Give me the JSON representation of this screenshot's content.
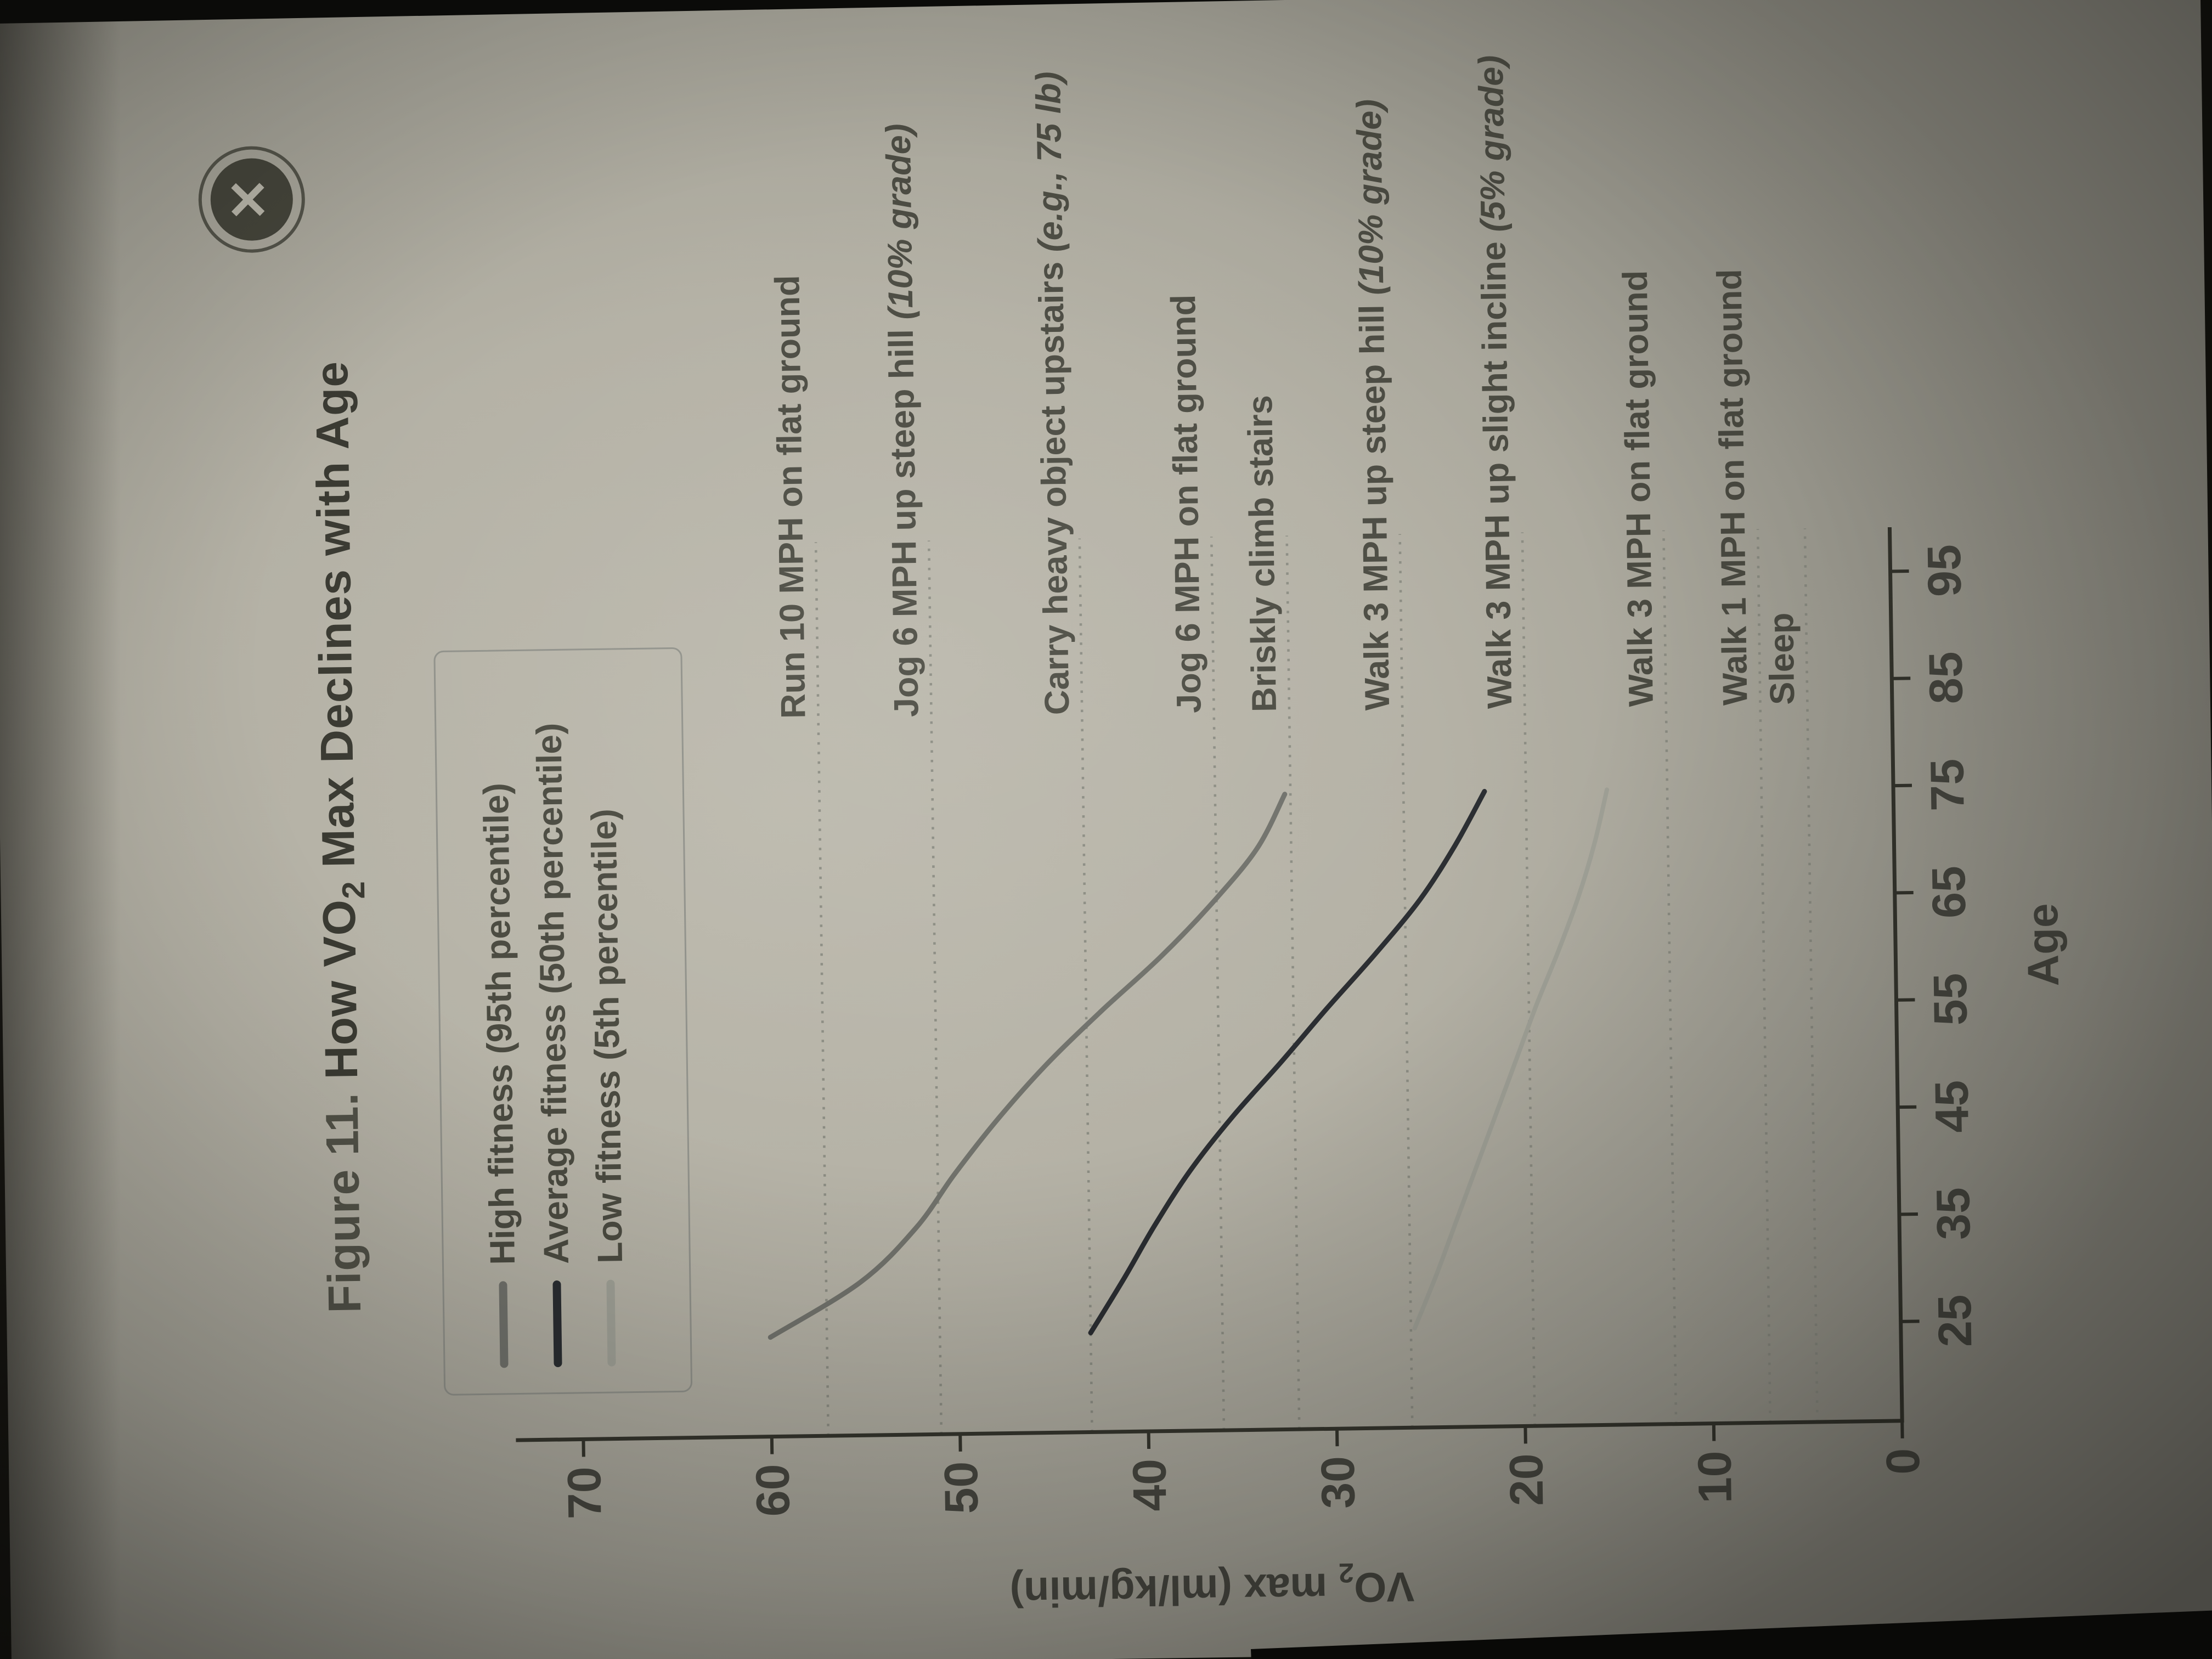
{
  "window": {
    "close_glyph": "✕"
  },
  "figure": {
    "label": "Figure 11.",
    "title_pre": "How VO",
    "title_sub": "2",
    "title_post": " Max Declines with Age"
  },
  "legend": {
    "items": [
      {
        "id": "high",
        "label": "High fitness (95th percentile)",
        "color": "#70716b"
      },
      {
        "id": "average",
        "label": "Average fitness (50th percentile)",
        "color": "#2a2d31"
      },
      {
        "id": "low",
        "label": "Low fitness (5th percentile)",
        "color": "#9fa096"
      }
    ]
  },
  "chart_data": {
    "type": "line",
    "title": "How VO₂ Max Declines with Age",
    "xlabel": "Age",
    "ylabel": "VO₂ max (ml/kg/min)",
    "ylabel_parts": {
      "pre": "VO",
      "sub": "2",
      "post": " max (ml/kg/min)"
    },
    "xlim": [
      25,
      95
    ],
    "ylim": [
      0,
      70
    ],
    "xticks": [
      25,
      35,
      45,
      55,
      65,
      75,
      85,
      95
    ],
    "yticks": [
      0,
      10,
      20,
      30,
      40,
      50,
      60,
      70
    ],
    "grid": false,
    "legend_position": "top-left",
    "series": [
      {
        "name": "High fitness (95th percentile)",
        "color": "#70716b",
        "width": 9,
        "points": [
          [
            25,
            60.0
          ],
          [
            30,
            55.2
          ],
          [
            35,
            52.2
          ],
          [
            40,
            50.1
          ],
          [
            45,
            47.8
          ],
          [
            50,
            45.2
          ],
          [
            55,
            42.2
          ],
          [
            60,
            39.0
          ],
          [
            65,
            36.2
          ],
          [
            70,
            33.8
          ],
          [
            75,
            32.3
          ]
        ]
      },
      {
        "name": "Average fitness (50th percentile)",
        "color": "#2a2d31",
        "width": 9,
        "points": [
          [
            25,
            43.0
          ],
          [
            30,
            41.2
          ],
          [
            35,
            39.5
          ],
          [
            40,
            37.6
          ],
          [
            45,
            35.3
          ],
          [
            50,
            32.7
          ],
          [
            55,
            30.2
          ],
          [
            60,
            27.6
          ],
          [
            65,
            25.2
          ],
          [
            70,
            23.3
          ],
          [
            75,
            21.7
          ]
        ]
      },
      {
        "name": "Low fitness (5th percentile)",
        "color": "#9fa096",
        "width": 8,
        "points": [
          [
            25,
            25.8
          ],
          [
            30,
            24.6
          ],
          [
            35,
            23.5
          ],
          [
            40,
            22.4
          ],
          [
            45,
            21.3
          ],
          [
            50,
            20.2
          ],
          [
            55,
            19.1
          ],
          [
            60,
            17.9
          ],
          [
            65,
            16.8
          ],
          [
            70,
            15.9
          ],
          [
            75,
            15.2
          ]
        ]
      }
    ],
    "reference_lines": [
      {
        "value": 57,
        "text": "Run 10 MPH on flat ground",
        "note": ""
      },
      {
        "value": 51,
        "text": "Jog 6 MPH up steep hill ",
        "note": "(10% grade)"
      },
      {
        "value": 43,
        "text": "Carry heavy object upstairs ",
        "note": "(e.g., 75 lb)"
      },
      {
        "value": 36,
        "text": "Jog 6 MPH on flat ground",
        "note": ""
      },
      {
        "value": 32,
        "text": "Briskly climb stairs",
        "note": ""
      },
      {
        "value": 26,
        "text": "Walk 3 MPH up steep hill ",
        "note": "(10% grade)"
      },
      {
        "value": 19.5,
        "text": "Walk 3 MPH up slight incline ",
        "note": "(5% grade)"
      },
      {
        "value": 12,
        "text": "Walk 3 MPH on flat ground",
        "note": ""
      },
      {
        "value": 7,
        "text": "Walk 1 MPH on flat ground",
        "note": ""
      },
      {
        "value": 4.5,
        "text": "Sleep",
        "note": ""
      }
    ]
  }
}
